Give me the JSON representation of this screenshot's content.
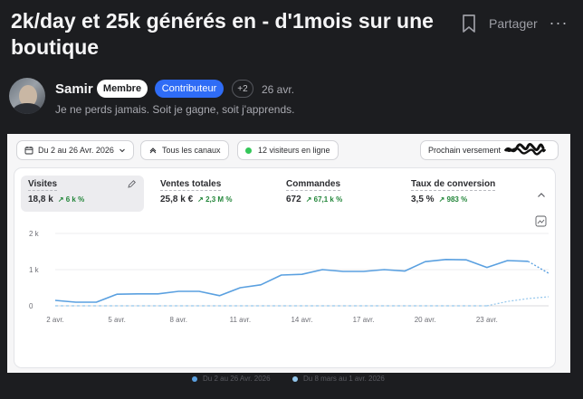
{
  "post": {
    "title": "2k/day et 25k générés en - d'1mois sur une boutique",
    "share_label": "Partager",
    "more_label": "···",
    "author": "Samir",
    "badge_member": "Membre",
    "badge_contributor": "Contributeur",
    "badge_extra": "+2",
    "date": "26 avr.",
    "bio": "Je ne perds jamais. Soit je gagne, soit j'apprends."
  },
  "dashboard": {
    "date_range": "Du 2 au 26 Avr. 2026",
    "channels": "Tous les canaux",
    "live_visitors": "12 visiteurs en ligne",
    "payout_label": "Prochain versement",
    "metrics": [
      {
        "label": "Visites",
        "value": "18,8 k",
        "delta": "↗ 6 k %"
      },
      {
        "label": "Ventes totales",
        "value": "25,8 k €",
        "delta": "↗ 2,3 M %"
      },
      {
        "label": "Commandes",
        "value": "672",
        "delta": "↗ 67,1 k %"
      },
      {
        "label": "Taux de conversion",
        "value": "3,5 %",
        "delta": "↗ 983 %"
      }
    ],
    "colors": {
      "current": "#5aa0e0",
      "previous": "#93c6ec",
      "delta": "#23863a",
      "accent": "#2f6cf6"
    }
  },
  "chart_data": {
    "type": "line",
    "y_ticks": [
      "2 k",
      "1 k",
      "0"
    ],
    "ylim": [
      0,
      2000
    ],
    "x_ticks": [
      "2 avr.",
      "5 avr.",
      "8 avr.",
      "11 avr.",
      "14 avr.",
      "17 avr.",
      "20 avr.",
      "23 avr."
    ],
    "x": [
      "2 avr.",
      "3 avr.",
      "4 avr.",
      "5 avr.",
      "6 avr.",
      "7 avr.",
      "8 avr.",
      "9 avr.",
      "10 avr.",
      "11 avr.",
      "12 avr.",
      "13 avr.",
      "14 avr.",
      "15 avr.",
      "16 avr.",
      "17 avr.",
      "18 avr.",
      "19 avr.",
      "20 avr.",
      "21 avr.",
      "22 avr.",
      "23 avr.",
      "24 avr.",
      "25 avr.",
      "26 avr."
    ],
    "series": [
      {
        "name": "Du 2 au 26 Avr. 2026",
        "values": [
          150,
          100,
          100,
          320,
          330,
          330,
          400,
          400,
          280,
          500,
          580,
          850,
          870,
          1000,
          950,
          950,
          1000,
          960,
          1220,
          1280,
          1270,
          1060,
          1250,
          1230,
          900
        ],
        "color": "#5aa0e0"
      },
      {
        "name": "Du 8 mars au 1 avr. 2026",
        "values": [
          0,
          0,
          0,
          0,
          0,
          0,
          0,
          0,
          0,
          0,
          0,
          0,
          0,
          0,
          0,
          0,
          0,
          0,
          0,
          0,
          0,
          0,
          120,
          200,
          250
        ],
        "color": "#93c6ec"
      }
    ],
    "grid": true,
    "legend": "bottom"
  }
}
